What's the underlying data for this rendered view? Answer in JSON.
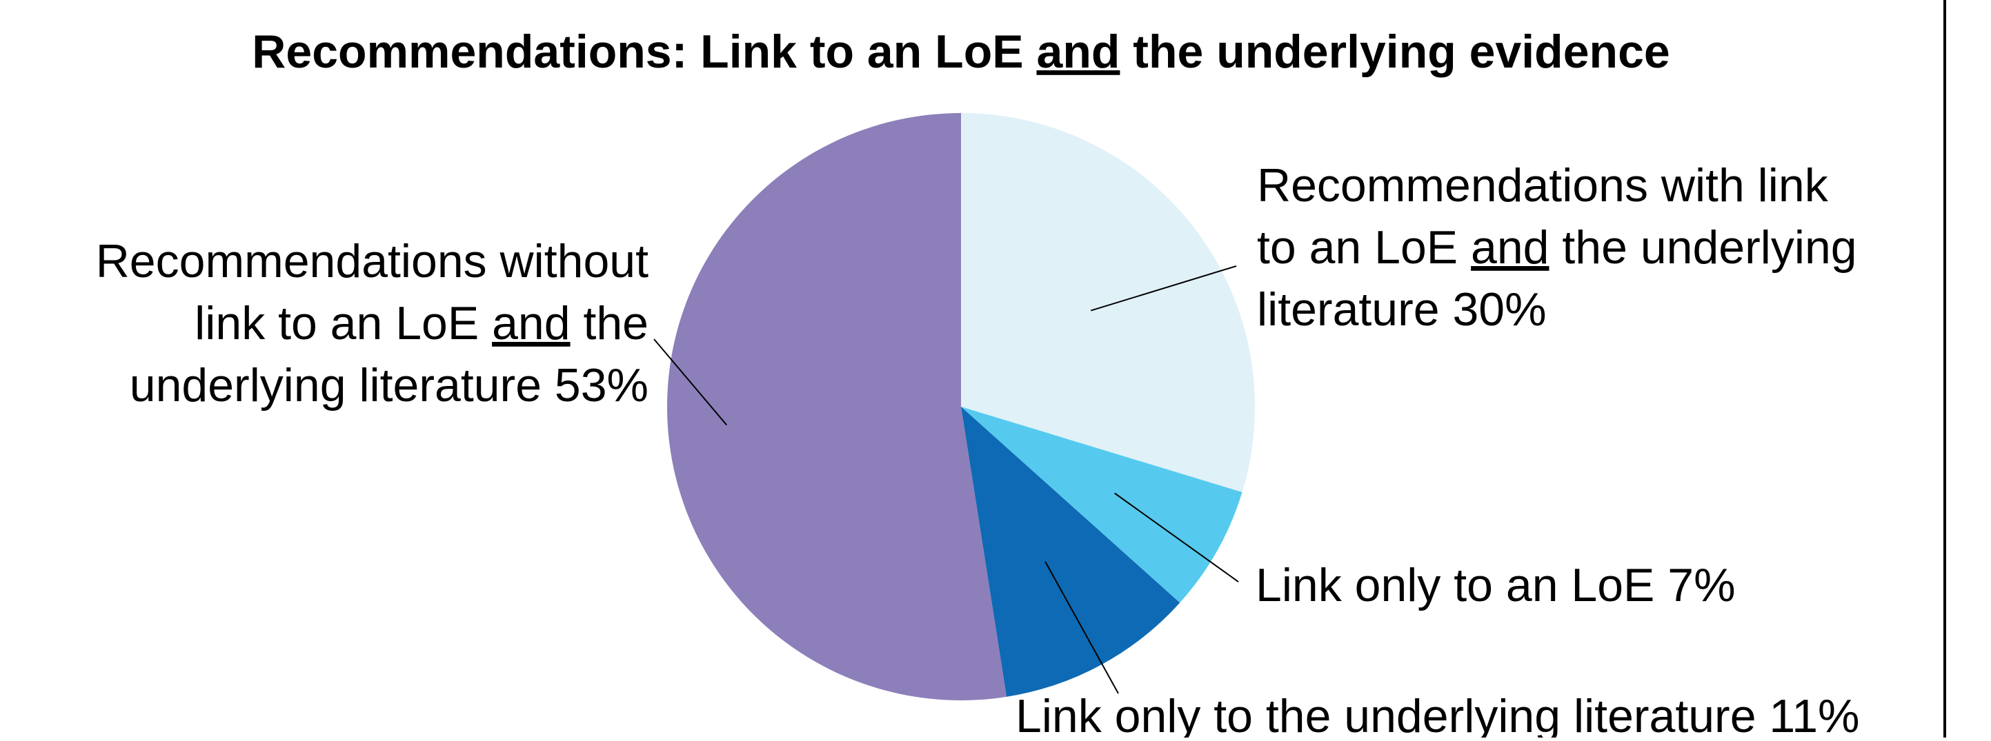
{
  "chart_data": {
    "type": "pie",
    "title_parts": [
      {
        "text": "Recommendations: Link to an LoE ",
        "underline": false
      },
      {
        "text": "and",
        "underline": true
      },
      {
        "text": " the underlying evidence",
        "underline": false
      }
    ],
    "start_angle_deg": 0,
    "direction": "clockwise",
    "slices": [
      {
        "value": 30,
        "color": "#E0F1F8",
        "label_lines": [
          [
            {
              "text": "Recommendations with link",
              "underline": false
            }
          ],
          [
            {
              "text": "to an LoE ",
              "underline": false
            },
            {
              "text": "and",
              "underline": true
            },
            {
              "text": " the underlying",
              "underline": false
            }
          ],
          [
            {
              "text": "literature 30%",
              "underline": false
            }
          ]
        ]
      },
      {
        "value": 7,
        "color": "#55CAEE",
        "label_lines": [
          [
            {
              "text": "Link only to an LoE 7%",
              "underline": false
            }
          ]
        ]
      },
      {
        "value": 11,
        "color": "#0E6AB4",
        "label_lines": [
          [
            {
              "text": "Link only to the underlying literature 11%",
              "underline": false
            }
          ]
        ]
      },
      {
        "value": 53,
        "color": "#8C7FBA",
        "label_lines": [
          [
            {
              "text": "Recommendations without",
              "underline": false
            }
          ],
          [
            {
              "text": "link to an LoE ",
              "underline": false
            },
            {
              "text": "and",
              "underline": true
            },
            {
              "text": " the",
              "underline": false
            }
          ],
          [
            {
              "text": "underlying literature 53%",
              "underline": false
            }
          ]
        ]
      }
    ],
    "legend": "none"
  }
}
